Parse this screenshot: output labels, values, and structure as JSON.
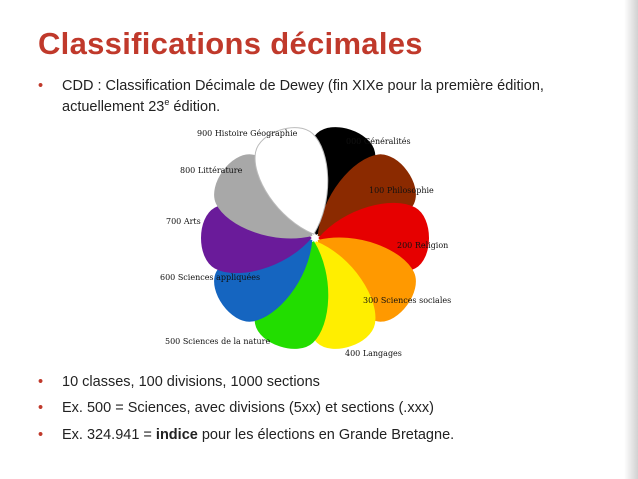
{
  "slide": {
    "title": "Classifications décimales",
    "bullet_dot": "•",
    "bullet1_line1": "CDD : Classification Décimale de Dewey (fin XIXe pour la première édition,",
    "bullet1_line2_pre": "actuellement 23",
    "bullet1_line2_sup": "e",
    "bullet1_line2_post": " édition.",
    "bullet2": "10 classes, 100 divisions, 1000 sections",
    "bullet3": "Ex. 500 = Sciences, avec divisions (5xx) et sections (.xxx)",
    "bullet4_pre": "Ex. 324.941 = ",
    "bullet4_bold": "indice",
    "bullet4_post": " pour les élections en Grande Bretagne."
  },
  "dewey_classes": [
    {
      "label": "000 Généralités",
      "color": "#000000"
    },
    {
      "label": "100 Philosophie",
      "color": "#8b2a00"
    },
    {
      "label": "200 Religion",
      "color": "#e60000"
    },
    {
      "label": "300 Sciences sociales",
      "color": "#ff9900"
    },
    {
      "label": "400 Langages",
      "color": "#ffee00"
    },
    {
      "label": "500 Sciences de la nature",
      "color": "#22dd00"
    },
    {
      "label": "600 Sciences appliquées",
      "color": "#1565c0"
    },
    {
      "label": "700 Arts",
      "color": "#6a1b9a"
    },
    {
      "label": "800 Littérature",
      "color": "#a8a8a8"
    },
    {
      "label": "900 Histoire Géographie",
      "color": "#ffffff"
    }
  ]
}
